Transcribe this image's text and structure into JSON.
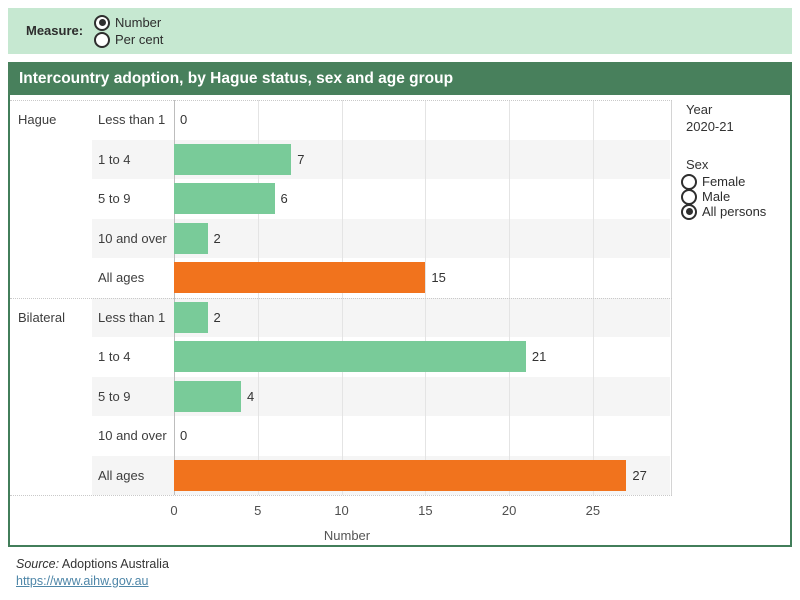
{
  "measure_bar": {
    "label": "Measure:",
    "options": [
      {
        "label": "Number",
        "selected": true
      },
      {
        "label": "Per cent",
        "selected": false
      }
    ]
  },
  "title": "Intercountry adoption, by Hague status, sex and age group",
  "sidebar": {
    "year_label": "Year",
    "year_value": "2020-21",
    "sex_label": "Sex",
    "sex_options": [
      {
        "label": "Female",
        "selected": false
      },
      {
        "label": "Male",
        "selected": false
      },
      {
        "label": "All persons",
        "selected": true
      }
    ]
  },
  "chart_data": {
    "type": "bar",
    "orientation": "horizontal",
    "title": "Intercountry adoption, by Hague status, sex and age group",
    "groups": [
      {
        "name": "Hague",
        "categories": [
          "Less than 1",
          "1 to 4",
          "5 to 9",
          "10 and over",
          "All ages"
        ],
        "values": [
          0,
          7,
          6,
          2,
          15
        ]
      },
      {
        "name": "Bilateral",
        "categories": [
          "Less than 1",
          "1 to 4",
          "5 to 9",
          "10 and over",
          "All ages"
        ],
        "values": [
          2,
          21,
          4,
          0,
          27
        ]
      }
    ],
    "highlight_category": "All ages",
    "xlabel": "Number",
    "ticks": [
      0,
      5,
      10,
      15,
      20,
      25
    ],
    "xlim": [
      0,
      29.6
    ],
    "grid": true,
    "bar_color": "#79cb99",
    "highlight_color": "#f1731d",
    "band_color": "#f5f5f5"
  },
  "footer": {
    "source_prefix": "Source:",
    "source_text": " Adoptions Australia",
    "link": "https://www.aihw.gov.au"
  },
  "colors": {
    "header_bg": "#c6e8d1",
    "title_bg": "#48805c",
    "panel_border": "#427e5a",
    "link": "#4e86a8"
  }
}
